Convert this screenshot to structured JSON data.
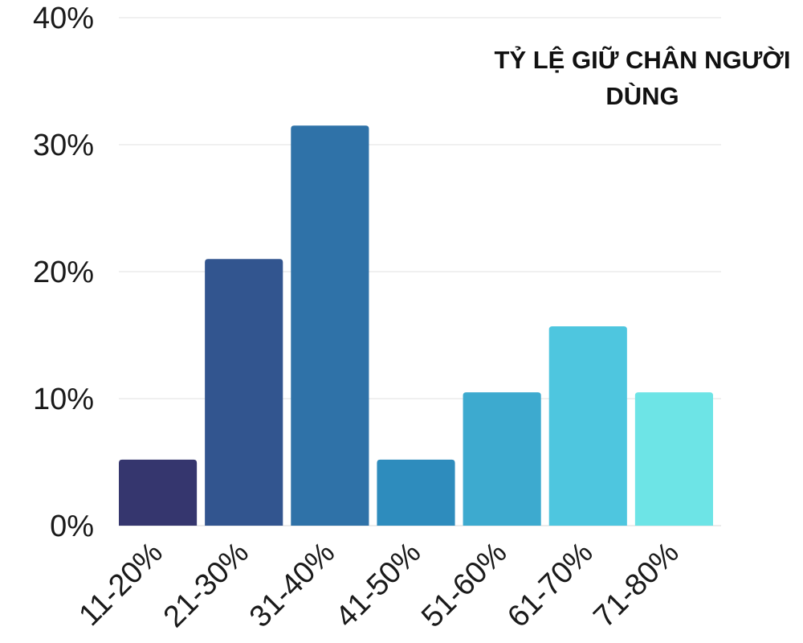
{
  "chart_data": {
    "type": "bar",
    "title": "TỶ LỆ GIỮ CHÂN NGƯỜI DÙNG",
    "xlabel": "",
    "ylabel": "",
    "categories": [
      "11-20%",
      "21-30%",
      "31-40%",
      "41-50%",
      "51-60%",
      "61-70%",
      "71-80%"
    ],
    "values": [
      5.2,
      21,
      31.5,
      5.2,
      10.5,
      15.7,
      10.5
    ],
    "ylim": [
      0,
      40
    ],
    "yticks": [
      0,
      10,
      20,
      30,
      40
    ],
    "ytick_labels": [
      "0%",
      "10%",
      "20%",
      "30%",
      "40%"
    ],
    "colors": [
      "#35366e",
      "#32558f",
      "#2f72a8",
      "#2e8cbd",
      "#3daacf",
      "#4ec6df",
      "#6de4e6"
    ],
    "grid": true,
    "legend": "none"
  }
}
